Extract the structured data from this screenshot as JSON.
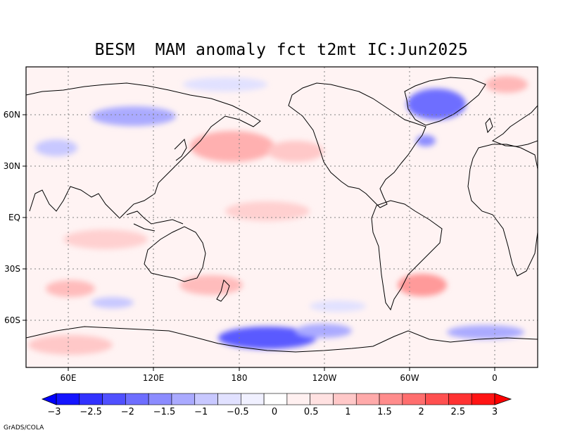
{
  "title": "BESM  MAM anomaly fct t2mt IC:Jun2025",
  "credit": "GrADS/COLA",
  "map": {
    "projection": "cylindrical, centered on 180",
    "lon_labels": [
      "60E",
      "120E",
      "180",
      "120W",
      "60W",
      "0"
    ],
    "lat_labels": [
      "60N",
      "30N",
      "EQ",
      "30S",
      "60S"
    ],
    "grid": "dotted"
  },
  "colorbar": {
    "labels": [
      "-3",
      "-2.5",
      "-2",
      "-1.5",
      "-1",
      "-0.5",
      "0",
      "0.5",
      "1",
      "1.5",
      "2",
      "2.5",
      "3"
    ],
    "colors": [
      "#1414ff",
      "#3232ff",
      "#5050ff",
      "#6e6eff",
      "#8c8cff",
      "#aaaaff",
      "#c8c8ff",
      "#e1e1ff",
      "#f0f0ff",
      "#ffffff",
      "#fff0f0",
      "#ffe1e1",
      "#ffc8c8",
      "#ffaaaa",
      "#ff8c8c",
      "#ff6e6e",
      "#ff5050",
      "#ff3232",
      "#ff1414"
    ],
    "under_color": "#0000ff",
    "over_color": "#ff0000"
  },
  "chart_data": {
    "type": "heatmap",
    "variable": "t2mt",
    "title": "BESM  MAM anomaly fct t2mt IC:Jun2025",
    "range": [
      -3,
      3
    ],
    "notable_regions": [
      {
        "region": "Greenland / Baffin Bay",
        "anomaly": "cool (about -1 to -2)"
      },
      {
        "region": "Antarctic coast south of Pacific (Ross/Amundsen Sea)",
        "anomaly": "cool (about -1 to -2.5)"
      },
      {
        "region": "Central/western Siberia",
        "anomaly": "cool (about -0.5 to -1)"
      },
      {
        "region": "North Pacific (~40N)",
        "anomaly": "warm (about 0.5 to 1.5)"
      },
      {
        "region": "Tropics and Southern Ocean",
        "anomaly": "slightly warm (about 0.5 to 1)"
      },
      {
        "region": "South Atlantic off Argentina",
        "anomaly": "warm (about 1 to 1.5)"
      },
      {
        "region": "Weddell Sea edge",
        "anomaly": "cool (about -0.5 to -1)"
      }
    ]
  }
}
